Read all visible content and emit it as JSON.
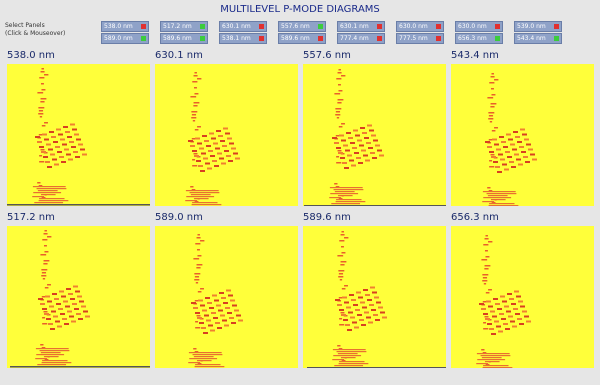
{
  "title": "MULTILEVEL P-MODE DIAGRAMS",
  "hint": [
    "Select Panels",
    "(Click & Mouseover)"
  ],
  "buttons": [
    [
      {
        "label": "538.0 nm",
        "on": false
      },
      {
        "label": "517.2 nm",
        "on": true
      },
      {
        "label": "630.1 nm",
        "on": false
      },
      {
        "label": "557.6 nm",
        "on": true
      },
      {
        "label": "630.1 nm",
        "on": false
      },
      {
        "label": "630.0 nm",
        "on": false
      },
      {
        "label": "630.0 nm",
        "on": false
      },
      {
        "label": "539.0 nm",
        "on": false
      }
    ],
    [
      {
        "label": "589.0 nm",
        "on": true
      },
      {
        "label": "589.6 nm",
        "on": true
      },
      {
        "label": "538.1 nm",
        "on": false
      },
      {
        "label": "589.6 nm",
        "on": false
      },
      {
        "label": "777.4 nm",
        "on": false
      },
      {
        "label": "777.5 nm",
        "on": false
      },
      {
        "label": "656.3 nm",
        "on": true
      },
      {
        "label": "543.4 nm",
        "on": true
      }
    ]
  ],
  "panels": [
    [
      "538.0 nm",
      "630.1 nm",
      "557.6 nm",
      "543.4 nm"
    ],
    [
      "517.2 nm",
      "589.0 nm",
      "589.6 nm",
      "656.3 nm"
    ]
  ]
}
